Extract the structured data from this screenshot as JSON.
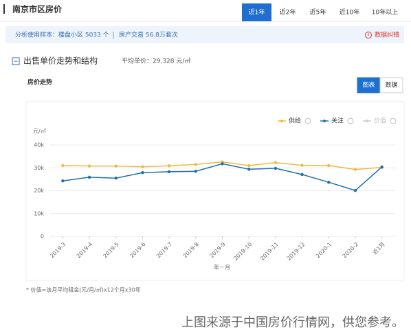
{
  "header": {
    "title": "南京市区房价",
    "tabs": [
      "近1年",
      "近2年",
      "近5年",
      "近10年",
      "10年以上"
    ],
    "active_tab": 0
  },
  "info": {
    "sample": "分析使用样本：楼盘小区 5033 个",
    "trades": "房产交易 56.8万套次",
    "report": "数据纠错"
  },
  "section": {
    "title": "出售单价走势和结构",
    "average": "平均单价：29,328 元/㎡"
  },
  "panel": {
    "title": "房价走势",
    "buttons": [
      "图表",
      "数据"
    ],
    "active_button": 0
  },
  "chart_data": {
    "type": "line",
    "y_label": "元/㎡",
    "x_label": "年－月",
    "categories": [
      "2019-3",
      "2019-4",
      "2019-5",
      "2019-6",
      "2019-7",
      "2019-8",
      "2019-9",
      "2019-10",
      "2019-11",
      "2019-12",
      "2020-1",
      "2020-2",
      "近1月"
    ],
    "series": [
      {
        "name": "供给",
        "color": "#f0b840",
        "values": [
          31000,
          30800,
          30800,
          30500,
          30900,
          31500,
          32600,
          31000,
          32300,
          31100,
          31000,
          29300,
          30200
        ]
      },
      {
        "name": "关注",
        "color": "#1f6fa8",
        "values": [
          24300,
          25900,
          25500,
          27900,
          28300,
          28500,
          31800,
          29400,
          29800,
          27100,
          23700,
          20100,
          30400
        ]
      },
      {
        "name": "价值",
        "color": "#cccccc",
        "values": [
          null,
          null,
          null,
          null,
          null,
          null,
          null,
          null,
          null,
          null,
          null,
          null,
          null
        ]
      }
    ],
    "ylim": [
      0,
      40000
    ],
    "yticks": [
      0,
      {
        "value": 10000,
        "label": "10k"
      },
      {
        "value": 20000,
        "label": "20k"
      },
      {
        "value": 30000,
        "label": "30k"
      },
      {
        "value": 40000,
        "label": "40k"
      }
    ],
    "grid": true
  },
  "footnote": "* 价值=该月平均租金(元/月/㎡)x12个月x30年",
  "caption": "上图来源于中国房价行情网，供您参考。"
}
